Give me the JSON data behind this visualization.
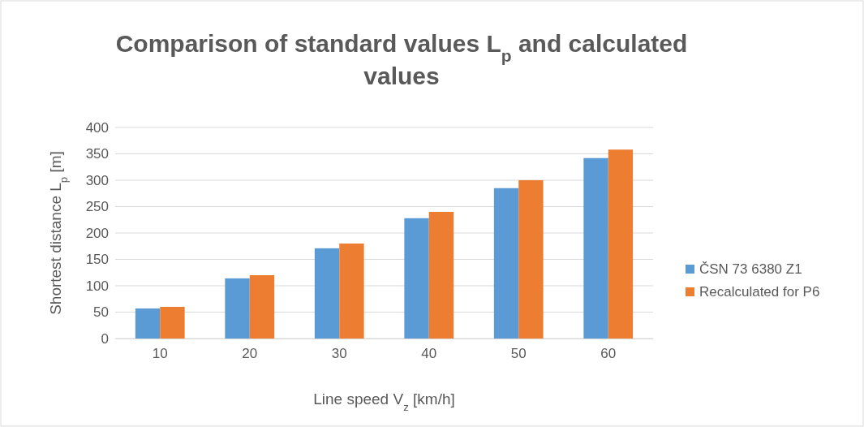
{
  "chart_data": {
    "type": "bar",
    "title": "Comparison of standard values L$_{p}$ and calculated values",
    "xlabel": "Line speed V$_{z}$ [km/h]",
    "ylabel": "Shortest distance L$_{p}$ [m]",
    "categories": [
      "10",
      "20",
      "30",
      "40",
      "50",
      "60"
    ],
    "series": [
      {
        "name": "ČSN 73 6380 Z1",
        "color": "#5b9bd5",
        "values": [
          57,
          114,
          171,
          228,
          285,
          342
        ]
      },
      {
        "name": "Recalculated for P6",
        "color": "#ed7d31",
        "values": [
          60,
          120,
          180,
          240,
          300,
          358
        ]
      }
    ],
    "ylim": [
      0,
      400
    ],
    "yticks": [
      0,
      50,
      100,
      150,
      200,
      250,
      300,
      350,
      400
    ],
    "grid": "y",
    "legend": "right"
  }
}
